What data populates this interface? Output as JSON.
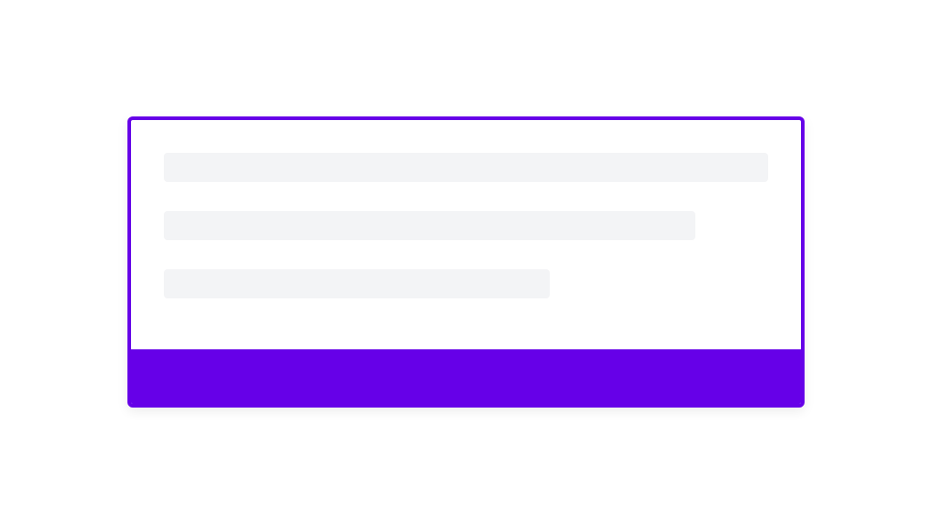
{
  "card": {
    "accent_color": "#6600e8",
    "skeleton_color": "#f3f4f6",
    "skeleton_lines": 3,
    "state": "loading"
  }
}
